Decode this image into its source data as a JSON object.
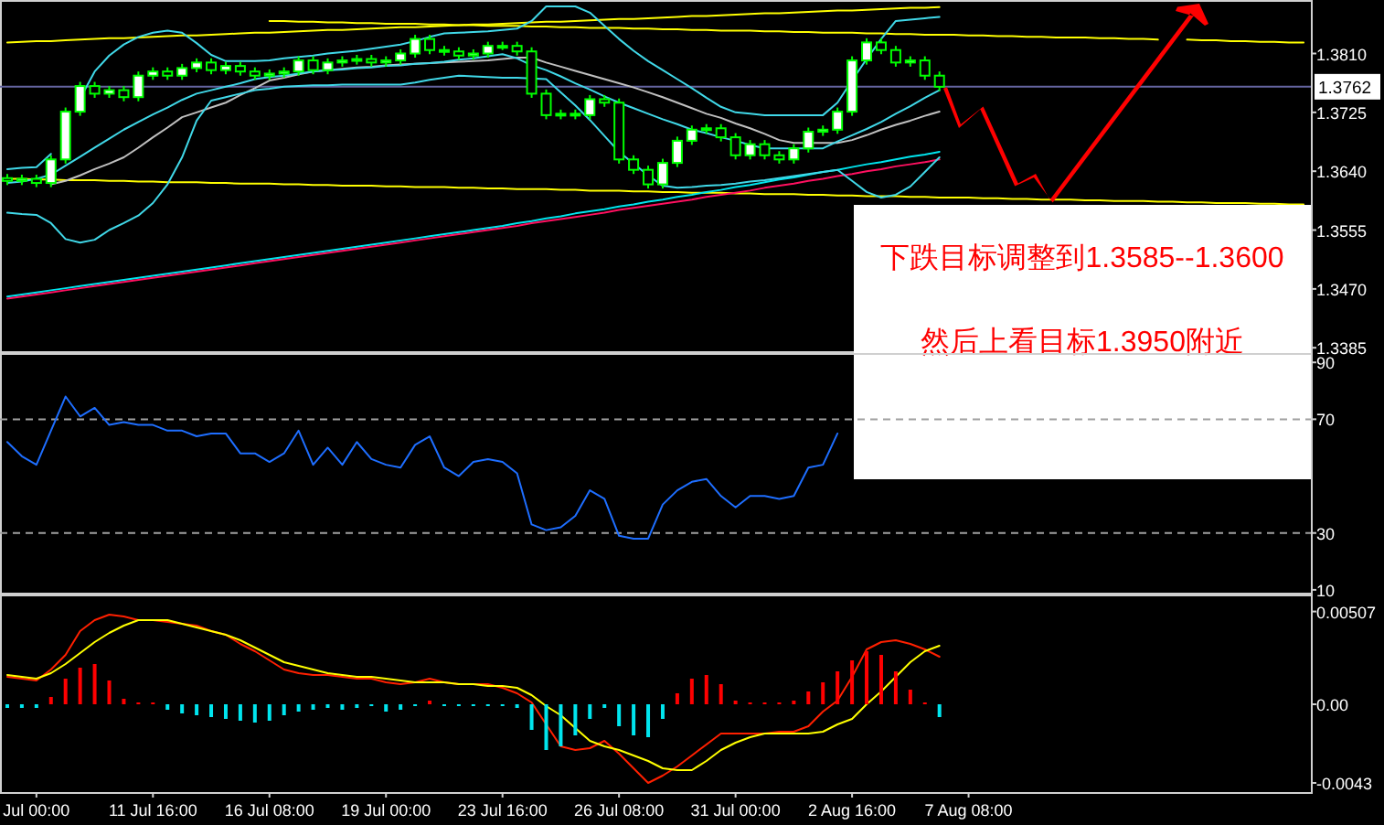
{
  "chart_data": [
    {
      "type": "candlestick",
      "ylim": [
        1.338,
        1.3882
      ],
      "tick_labels": "y",
      "yticks": [
        {
          "value": 1.381,
          "label": "1.3810"
        },
        {
          "value": 1.3725,
          "label": "1.3725"
        },
        {
          "value": 1.364,
          "label": "1.3640"
        },
        {
          "value": 1.3555,
          "label": "1.3555"
        },
        {
          "value": 1.347,
          "label": "1.3470"
        },
        {
          "value": 1.3385,
          "label": "1.3385"
        }
      ],
      "categories": [
        null,
        null,
        null,
        null,
        null,
        null,
        null,
        null,
        null,
        null,
        null,
        null,
        null,
        null,
        null,
        null,
        null,
        null,
        null,
        null,
        null,
        null,
        null,
        null,
        null,
        null,
        null,
        null,
        null,
        null,
        null,
        null,
        null,
        null,
        null,
        null,
        null,
        null,
        null,
        null,
        null,
        null,
        null,
        null,
        null,
        null,
        null,
        null,
        null,
        null,
        null,
        null,
        null,
        null,
        null,
        null,
        null,
        null,
        null,
        null,
        null,
        null,
        null,
        null,
        null,
        null,
        null,
        null,
        null,
        null,
        null,
        null,
        null,
        null,
        null,
        null,
        null,
        null,
        null,
        null,
        null,
        null,
        null,
        null,
        null,
        null,
        null,
        null,
        null,
        null
      ],
      "ohlc": [
        [
          1.363,
          1.3636,
          1.362,
          1.3626
        ],
        [
          1.3626,
          1.3635,
          1.362,
          1.3629
        ],
        [
          1.3629,
          1.3635,
          1.3617,
          1.3623
        ],
        [
          1.3623,
          1.3663,
          1.3617,
          1.3657
        ],
        [
          1.3657,
          1.3732,
          1.3651,
          1.3726
        ],
        [
          1.3726,
          1.3769,
          1.372,
          1.3763
        ],
        [
          1.3763,
          1.3769,
          1.3746,
          1.3752
        ],
        [
          1.3752,
          1.3763,
          1.3746,
          1.3757
        ],
        [
          1.3757,
          1.3763,
          1.3741,
          1.3747
        ],
        [
          1.3747,
          1.3784,
          1.3741,
          1.3778
        ],
        [
          1.3778,
          1.379,
          1.3772,
          1.3784
        ],
        [
          1.3784,
          1.379,
          1.3772,
          1.3778
        ],
        [
          1.3778,
          1.3795,
          1.3772,
          1.3789
        ],
        [
          1.3789,
          1.3803,
          1.3783,
          1.3797
        ],
        [
          1.3797,
          1.3803,
          1.378,
          1.3786
        ],
        [
          1.3786,
          1.3798,
          1.378,
          1.3792
        ],
        [
          1.3792,
          1.3798,
          1.3778,
          1.3784
        ],
        [
          1.3784,
          1.379,
          1.3772,
          1.3778
        ],
        [
          1.3778,
          1.3787,
          1.3772,
          1.3781
        ],
        [
          1.3781,
          1.379,
          1.3775,
          1.3784
        ],
        [
          1.3784,
          1.3806,
          1.3778,
          1.38
        ],
        [
          1.38,
          1.3806,
          1.378,
          1.3786
        ],
        [
          1.3786,
          1.3803,
          1.378,
          1.3797
        ],
        [
          1.3797,
          1.3806,
          1.3791,
          1.38
        ],
        [
          1.38,
          1.3808,
          1.3794,
          1.3802
        ],
        [
          1.3802,
          1.3808,
          1.3791,
          1.3797
        ],
        [
          1.3797,
          1.3806,
          1.3791,
          1.38
        ],
        [
          1.38,
          1.3816,
          1.3794,
          1.381
        ],
        [
          1.381,
          1.3837,
          1.3804,
          1.3831
        ],
        [
          1.3831,
          1.3837,
          1.3809,
          1.3815
        ],
        [
          1.3815,
          1.3821,
          1.3807,
          1.3813
        ],
        [
          1.3813,
          1.3819,
          1.3801,
          1.3807
        ],
        [
          1.3807,
          1.3816,
          1.3801,
          1.381
        ],
        [
          1.381,
          1.3827,
          1.3804,
          1.3821
        ],
        [
          1.3821,
          1.3827,
          1.3815,
          1.3821
        ],
        [
          1.3821,
          1.3827,
          1.3807,
          1.3813
        ],
        [
          1.3813,
          1.3819,
          1.3746,
          1.3752
        ],
        [
          1.3752,
          1.3758,
          1.3715,
          1.3721
        ],
        [
          1.3721,
          1.3729,
          1.3715,
          1.3723
        ],
        [
          1.3723,
          1.3729,
          1.3715,
          1.3721
        ],
        [
          1.3721,
          1.375,
          1.3715,
          1.3744
        ],
        [
          1.3744,
          1.375,
          1.3733,
          1.3739
        ],
        [
          1.3739,
          1.3745,
          1.3651,
          1.3657
        ],
        [
          1.3657,
          1.3663,
          1.3636,
          1.3642
        ],
        [
          1.3642,
          1.3648,
          1.3615,
          1.3621
        ],
        [
          1.3621,
          1.3658,
          1.3615,
          1.3652
        ],
        [
          1.3652,
          1.369,
          1.3646,
          1.3684
        ],
        [
          1.3684,
          1.3706,
          1.3678,
          1.37
        ],
        [
          1.37,
          1.3708,
          1.3694,
          1.3702
        ],
        [
          1.3702,
          1.3708,
          1.3683,
          1.3689
        ],
        [
          1.3689,
          1.3695,
          1.3657,
          1.3663
        ],
        [
          1.3663,
          1.3685,
          1.3657,
          1.3679
        ],
        [
          1.3679,
          1.3685,
          1.3657,
          1.3663
        ],
        [
          1.3663,
          1.3669,
          1.3651,
          1.3657
        ],
        [
          1.3657,
          1.3679,
          1.3651,
          1.3673
        ],
        [
          1.3673,
          1.3703,
          1.3667,
          1.3697
        ],
        [
          1.3697,
          1.3706,
          1.3691,
          1.37
        ],
        [
          1.37,
          1.3732,
          1.3694,
          1.3726
        ],
        [
          1.3726,
          1.3806,
          1.372,
          1.38
        ],
        [
          1.38,
          1.3832,
          1.3794,
          1.3826
        ],
        [
          1.3826,
          1.3832,
          1.3809,
          1.3815
        ],
        [
          1.3815,
          1.3821,
          1.3791,
          1.3797
        ],
        [
          1.3797,
          1.3806,
          1.3791,
          1.38
        ],
        [
          1.38,
          1.3806,
          1.3772,
          1.3778
        ],
        [
          1.3778,
          1.3784,
          1.3756,
          1.3762
        ],
        null,
        null,
        null,
        null,
        null,
        null,
        null,
        null,
        null,
        null,
        null,
        null,
        null,
        null,
        null,
        null,
        null,
        null,
        null,
        null,
        null,
        null,
        null,
        null,
        null
      ],
      "series": [
        {
          "type": "line",
          "color": "#ffff00",
          "values": [
            1.3826,
            1.3827,
            1.3828,
            1.3828,
            1.3829,
            1.383,
            1.3831,
            1.3832,
            1.3832,
            1.3833,
            1.3834,
            1.3835,
            1.3836,
            1.3836,
            1.3837,
            1.3838,
            1.3839,
            1.384,
            1.384,
            1.3841,
            1.3842,
            1.3843,
            1.3844,
            1.3844,
            1.3845,
            1.3846,
            1.3847,
            1.3848,
            1.3848,
            1.3849,
            1.385,
            1.3851,
            1.3852,
            1.3852,
            1.3853,
            1.3854,
            1.3855,
            1.3856,
            1.3856,
            1.3857,
            1.3858,
            1.3859,
            1.386,
            1.386,
            1.3861,
            1.3862,
            1.3863,
            1.3864,
            1.3864,
            1.3865,
            1.3866,
            1.3867,
            1.3868,
            1.3868,
            1.3869,
            1.387,
            1.3871,
            1.3872,
            1.3872,
            1.3873,
            1.3874,
            1.3875,
            1.3876,
            1.3876,
            1.3877,
            null,
            null,
            null,
            null,
            null,
            null,
            null,
            null,
            null,
            null,
            null,
            null,
            null,
            null,
            null,
            null,
            null,
            null,
            null,
            null,
            null,
            null,
            null,
            null,
            null
          ]
        },
        {
          "type": "line",
          "color": "#ffff00",
          "values": [
            null,
            null,
            null,
            null,
            null,
            null,
            null,
            null,
            null,
            null,
            null,
            null,
            null,
            null,
            null,
            null,
            null,
            null,
            1.3857,
            1.3857,
            1.3856,
            1.3856,
            1.3855,
            1.3855,
            1.3854,
            1.3854,
            1.3853,
            1.3853,
            1.3853,
            1.3852,
            1.3852,
            1.3851,
            1.3851,
            1.385,
            1.385,
            1.385,
            1.3849,
            1.3849,
            1.3848,
            1.3848,
            1.3847,
            1.3847,
            1.3847,
            1.3846,
            1.3846,
            1.3845,
            1.3845,
            1.3844,
            1.3844,
            1.3843,
            1.3843,
            1.3843,
            1.3842,
            1.3842,
            1.3841,
            1.3841,
            1.384,
            1.384,
            1.384,
            1.3839,
            1.3839,
            1.3838,
            1.3838,
            1.3837,
            1.3837,
            1.3837,
            1.3836,
            1.3836,
            1.3835,
            1.3835,
            1.3834,
            1.3834,
            1.3833,
            1.3833,
            1.3833,
            1.3832,
            1.3832,
            1.3831,
            1.3831,
            1.383,
            null,
            1.383,
            1.3829,
            1.3829,
            1.3828,
            1.3828,
            1.3827,
            1.3827,
            1.3826,
            1.3826
          ]
        },
        {
          "type": "line",
          "color": "#ffff00",
          "values": [
            1.3629,
            1.3629,
            1.3628,
            1.3628,
            1.3627,
            1.3627,
            1.3627,
            1.3626,
            1.3626,
            1.3625,
            1.3625,
            1.3624,
            1.3624,
            1.3624,
            1.3623,
            1.3623,
            1.3622,
            1.3622,
            1.3622,
            1.3621,
            1.3621,
            1.362,
            1.362,
            1.3619,
            1.3619,
            1.3619,
            1.3618,
            1.3618,
            1.3617,
            1.3617,
            1.3617,
            1.3616,
            1.3616,
            1.3615,
            1.3615,
            1.3614,
            1.3614,
            1.3614,
            1.3613,
            1.3613,
            1.3612,
            1.3612,
            1.3612,
            1.3611,
            1.3611,
            1.361,
            1.361,
            1.3609,
            1.3609,
            1.3609,
            1.3608,
            1.3608,
            1.3607,
            1.3607,
            1.3607,
            1.3606,
            1.3606,
            1.3605,
            1.3605,
            1.3604,
            1.3604,
            1.3604,
            1.3603,
            1.3603,
            1.3602,
            1.3602,
            1.3602,
            1.3601,
            1.3601,
            1.36,
            1.36,
            1.3599,
            1.3599,
            1.3599,
            1.3598,
            1.3598,
            1.3597,
            1.3597,
            1.3597,
            1.3596,
            1.3596,
            1.3595,
            1.3595,
            1.3594,
            1.3594,
            1.3594,
            1.3593,
            1.3593,
            1.3592,
            1.3592
          ]
        },
        {
          "type": "line",
          "color": "#00e5ee",
          "values": [
            1.3459,
            1.3462,
            1.3465,
            1.3468,
            1.3471,
            1.3474,
            1.3477,
            1.348,
            1.3483,
            1.3486,
            1.3489,
            1.3492,
            1.3495,
            1.3498,
            1.3501,
            1.3504,
            1.3507,
            1.351,
            1.3513,
            1.3516,
            1.3519,
            1.3522,
            1.3525,
            1.3528,
            1.3531,
            1.3534,
            1.3537,
            1.354,
            1.3543,
            1.3546,
            1.3549,
            1.3552,
            1.3555,
            1.3558,
            1.3561,
            1.3565,
            1.3568,
            1.3572,
            1.3575,
            1.3579,
            1.3582,
            1.3585,
            1.3589,
            1.3592,
            1.3596,
            1.3599,
            1.3603,
            1.3606,
            1.361,
            1.3613,
            1.3617,
            1.362,
            1.3624,
            1.3628,
            1.3631,
            1.3635,
            1.3639,
            1.3642,
            1.3646,
            1.365,
            1.3653,
            1.3657,
            1.3661,
            1.3664,
            1.3668,
            null,
            null,
            null,
            null,
            null,
            null,
            null,
            null,
            null,
            null,
            null,
            null,
            null,
            null,
            null,
            null,
            null,
            null,
            null,
            null,
            null,
            null,
            null,
            null,
            null
          ]
        },
        {
          "type": "line",
          "color": "#ff1060",
          "values": [
            1.3456,
            1.3459,
            1.3462,
            1.3465,
            1.3468,
            1.3471,
            1.3474,
            1.3477,
            1.348,
            1.3483,
            1.3486,
            1.3489,
            1.3492,
            1.3495,
            1.3498,
            1.3501,
            1.3504,
            1.3507,
            1.351,
            1.3513,
            1.3516,
            1.3519,
            1.3522,
            1.3525,
            1.3528,
            1.3531,
            1.3534,
            1.3537,
            1.354,
            1.3543,
            1.3546,
            1.3549,
            1.3552,
            1.3555,
            1.3558,
            1.3561,
            1.3565,
            1.3568,
            1.3571,
            1.3574,
            1.3577,
            1.358,
            1.3584,
            1.3587,
            1.359,
            1.3593,
            1.3596,
            1.3599,
            1.3603,
            1.3606,
            1.3609,
            1.3612,
            1.3616,
            1.3619,
            1.3622,
            1.3626,
            1.3629,
            1.3633,
            1.3636,
            1.364,
            1.3643,
            1.3647,
            1.365,
            1.3653,
            1.3657,
            null,
            null,
            null,
            null,
            null,
            null,
            null,
            null,
            null,
            null,
            null,
            null,
            null,
            null,
            null,
            null,
            null,
            null,
            null,
            null,
            null,
            null,
            null,
            null,
            null
          ]
        },
        {
          "type": "line",
          "color": "#c0c0c0",
          "values": [
            null,
            null,
            null,
            1.3621,
            1.3626,
            1.3634,
            1.3643,
            1.3651,
            1.366,
            1.3674,
            1.3689,
            1.3703,
            1.3718,
            1.3725,
            1.3732,
            1.3739,
            1.375,
            1.376,
            1.3771,
            1.3775,
            1.378,
            1.3784,
            1.3786,
            1.3788,
            1.379,
            1.3791,
            1.3793,
            1.3794,
            1.3795,
            1.3796,
            1.3797,
            1.3798,
            1.3799,
            1.38,
            1.3802,
            1.3804,
            1.3804,
            1.3797,
            1.3791,
            1.3785,
            1.3779,
            1.3773,
            1.3767,
            1.3761,
            1.3754,
            1.3747,
            1.3739,
            1.3731,
            1.3723,
            1.3717,
            1.3709,
            1.3702,
            1.3694,
            1.3685,
            1.3681,
            1.3681,
            1.3681,
            1.3681,
            1.3685,
            1.3692,
            1.37,
            1.3707,
            1.3713,
            1.372,
            1.3726,
            null,
            null,
            null,
            null,
            null,
            null,
            null,
            null,
            null,
            null,
            null,
            null,
            null,
            null,
            null,
            null,
            null,
            null,
            null,
            null,
            null,
            null,
            null,
            null,
            null
          ]
        },
        {
          "type": "line",
          "color": "#40d8e8",
          "values": [
            1.3623,
            1.3625,
            1.3629,
            1.3635,
            1.3648,
            1.3661,
            1.3674,
            1.3687,
            1.37,
            1.3711,
            1.3722,
            1.3732,
            1.3743,
            1.3752,
            1.3757,
            1.3762,
            1.3767,
            1.3773,
            1.3776,
            1.3778,
            1.3781,
            1.3784,
            1.3786,
            1.3787,
            1.3789,
            1.379,
            1.3792,
            1.3793,
            1.3795,
            1.3796,
            1.3798,
            1.3801,
            1.3803,
            1.3806,
            1.3809,
            1.3803,
            1.3793,
            1.3786,
            1.3777,
            1.3767,
            1.3758,
            1.3748,
            1.3739,
            1.3731,
            1.3723,
            1.3715,
            1.3708,
            1.37,
            1.3695,
            1.3689,
            1.3684,
            1.3678,
            1.3673,
            1.3673,
            1.3673,
            1.3673,
            1.3673,
            1.3683,
            1.3692,
            1.3701,
            1.3711,
            1.3723,
            1.3734,
            1.3746,
            1.3757,
            null,
            null,
            null,
            null,
            null,
            null,
            null,
            null,
            null,
            null,
            null,
            null,
            null,
            null,
            null,
            null,
            null,
            null,
            null,
            null,
            null,
            null,
            null,
            null,
            null
          ]
        },
        {
          "type": "line",
          "color": "#40d8e8",
          "values": [
            1.3643,
            1.3645,
            1.3646,
            1.3665,
            null,
            1.3745,
            1.3784,
            1.3807,
            1.3823,
            1.3834,
            1.384,
            1.3843,
            1.384,
            1.3825,
            1.3808,
            1.3799,
            1.3799,
            1.3799,
            1.38,
            1.3803,
            1.3805,
            1.3807,
            1.381,
            1.3812,
            1.3814,
            1.3817,
            1.382,
            1.3823,
            1.3828,
            1.3834,
            1.3839,
            1.384,
            1.3841,
            1.3842,
            1.3844,
            1.3846,
            1.3857,
            1.3878,
            1.3878,
            1.3878,
            1.3869,
            1.385,
            1.3831,
            1.3814,
            1.3799,
            1.3786,
            1.3773,
            1.376,
            1.3746,
            1.3733,
            1.3725,
            1.3723,
            1.3721,
            1.3721,
            1.3721,
            1.3721,
            1.3721,
            1.3739,
            1.3771,
            1.3802,
            1.3831,
            1.3857,
            1.3859,
            1.3861,
            1.3863,
            null,
            null,
            null,
            null,
            null,
            null,
            null,
            null,
            null,
            null,
            null,
            null,
            null,
            null,
            null,
            null,
            null,
            null,
            null,
            null,
            null,
            null,
            null,
            null,
            null
          ]
        },
        {
          "type": "line",
          "color": "#40d8e8",
          "values": [
            1.358,
            1.3578,
            1.3577,
            1.3565,
            1.3542,
            1.3537,
            1.3541,
            1.3555,
            1.3565,
            1.3576,
            1.3594,
            1.3621,
            1.366,
            1.3713,
            1.3742,
            1.3747,
            1.3752,
            1.3757,
            1.3759,
            1.3762,
            1.3763,
            1.3764,
            1.3764,
            1.3765,
            1.3765,
            1.3765,
            1.3765,
            1.3765,
            1.3768,
            1.3772,
            1.3775,
            1.3778,
            1.3777,
            1.3776,
            1.3775,
            1.3775,
            1.3774,
            1.3773,
            1.3754,
            1.3735,
            1.3714,
            1.3691,
            1.3668,
            1.3651,
            1.3634,
            1.3619,
            1.3616,
            1.3617,
            1.3619,
            1.362,
            1.3622,
            1.3625,
            1.3627,
            1.363,
            1.3633,
            1.3636,
            1.3639,
            1.3642,
            1.3626,
            1.361,
            1.3602,
            1.3606,
            1.3618,
            1.3639,
            1.366,
            null,
            null,
            null,
            null,
            null,
            null,
            null,
            null,
            null,
            null,
            null,
            null,
            null,
            null,
            null,
            null,
            null,
            null,
            null,
            null,
            null,
            null,
            null,
            null,
            null
          ]
        }
      ],
      "ref_lines": [
        {
          "axis": "y",
          "value": 1.3762,
          "label": "1.3762",
          "color": "#6464a0"
        }
      ],
      "annotations": [
        "下跌目标调整到1.3585--1.3600",
        "然后上看目标1.3950附近"
      ]
    },
    {
      "type": "line",
      "ylim": [
        9,
        92
      ],
      "tick_labels": "y",
      "yticks": [
        90,
        70,
        30,
        10
      ],
      "categories": [
        null,
        null,
        null,
        null,
        null,
        null,
        null,
        null,
        null,
        null,
        null,
        null,
        null,
        null,
        null,
        null,
        null,
        null,
        null,
        null,
        null,
        null,
        null,
        null,
        null,
        null,
        null,
        null,
        null,
        null,
        null,
        null,
        null,
        null,
        null,
        null,
        null,
        null,
        null,
        null,
        null,
        null,
        null,
        null,
        null,
        null,
        null,
        null,
        null,
        null,
        null,
        null,
        null,
        null,
        null,
        null,
        null,
        null,
        null,
        null,
        null,
        null,
        null,
        null,
        null,
        null,
        null,
        null,
        null,
        null,
        null,
        null,
        null,
        null,
        null,
        null,
        null,
        null,
        null,
        null,
        null,
        null,
        null,
        null,
        null,
        null,
        null,
        null,
        null,
        null
      ],
      "ref_lines": [
        {
          "axis": "y",
          "value": 70,
          "color": "#a0a0a0",
          "line_style": "dashed"
        },
        {
          "axis": "y",
          "value": 30,
          "color": "#a0a0a0",
          "line_style": "dashed"
        }
      ],
      "series": [
        {
          "color": "#1e6eff",
          "values": [
            62,
            57,
            54,
            66,
            78,
            71,
            74,
            68,
            69,
            68,
            68,
            66,
            66,
            64,
            65,
            65,
            58,
            58,
            55,
            58,
            66,
            54,
            60,
            54,
            62,
            56,
            54,
            53,
            61,
            64,
            53,
            50,
            55,
            56,
            55,
            51,
            33,
            31,
            32,
            36,
            45,
            42,
            29,
            28,
            28,
            40,
            45,
            48,
            49,
            43,
            39,
            43,
            43,
            42,
            43,
            53,
            54,
            65,
            null,
            null,
            null,
            null,
            null,
            null,
            null,
            null,
            null,
            null,
            null,
            null,
            null,
            null,
            null,
            null,
            null,
            null,
            null,
            null,
            null,
            null,
            null,
            null,
            null,
            null,
            null,
            null,
            null,
            null,
            null,
            null
          ]
        }
      ]
    },
    {
      "type": "bar",
      "ylim": [
        -0.0048,
        0.0058
      ],
      "yticks": [
        0.00507,
        {
          "value": 0,
          "label": "0.00"
        },
        -0.0043
      ],
      "categories": [
        null,
        null,
        "Jul 00:00",
        null,
        null,
        null,
        null,
        null,
        null,
        null,
        "11 Jul 16:00",
        null,
        null,
        null,
        null,
        null,
        null,
        null,
        "16 Jul 08:00",
        null,
        null,
        null,
        null,
        null,
        null,
        null,
        "19 Jul 00:00",
        null,
        null,
        null,
        null,
        null,
        null,
        null,
        "23 Jul 16:00",
        null,
        null,
        null,
        null,
        null,
        null,
        null,
        "26 Jul 08:00",
        null,
        null,
        null,
        null,
        null,
        null,
        null,
        "31 Jul 00:00",
        null,
        null,
        null,
        null,
        null,
        null,
        null,
        "2 Aug 16:00",
        null,
        null,
        null,
        null,
        null,
        null,
        null,
        "7 Aug 08:00",
        null,
        null,
        null,
        null,
        null,
        null,
        null,
        null,
        null,
        null,
        null,
        null,
        null,
        null,
        null,
        null,
        null,
        null,
        null,
        null,
        null,
        null,
        null
      ],
      "values": [
        -0.0002,
        -0.0002,
        -0.0002,
        0.0004,
        0.0014,
        0.002,
        0.0022,
        0.0013,
        0.0003,
        0.0001,
        0.0001,
        -0.0003,
        -0.0005,
        -0.0006,
        -0.0007,
        -0.0008,
        -0.0009,
        -0.001,
        -0.0009,
        -0.0006,
        -0.0004,
        -0.0003,
        -0.0002,
        -0.0003,
        -0.0002,
        -0.0001,
        -0.0004,
        -0.0003,
        -0.0001,
        0.0002,
        -0.0001,
        -0.0001,
        -0.0001,
        -0.0001,
        -0.0001,
        -0.0002,
        -0.0014,
        -0.0025,
        -0.0023,
        -0.0017,
        -0.0008,
        -0.0002,
        -0.0012,
        -0.0017,
        -0.0018,
        -0.0008,
        0.0006,
        0.0014,
        0.0016,
        0.0011,
        0.0002,
        0.0001,
        0.0001,
        0.0001,
        0.0002,
        0.0007,
        0.0012,
        0.0018,
        0.0024,
        0.0029,
        0.0027,
        0.0018,
        0.0008,
        0.0001,
        -0.0007,
        null,
        null,
        null,
        null,
        null,
        null,
        null,
        null,
        null,
        null,
        null,
        null,
        null,
        null,
        null,
        null,
        null,
        null,
        null,
        null,
        null,
        null,
        null,
        null,
        null
      ],
      "colors": [
        "#00e5ee",
        "#00e5ee",
        "#00e5ee",
        "#ff0000",
        "#ff0000",
        "#ff0000",
        "#ff0000",
        "#ff0000",
        "#ff0000",
        "#ff0000",
        "#ff0000",
        "#00e5ee",
        "#00e5ee",
        "#00e5ee",
        "#00e5ee",
        "#00e5ee",
        "#00e5ee",
        "#00e5ee",
        "#00e5ee",
        "#00e5ee",
        "#00e5ee",
        "#00e5ee",
        "#00e5ee",
        "#00e5ee",
        "#00e5ee",
        "#00e5ee",
        "#00e5ee",
        "#00e5ee",
        "#00e5ee",
        "#ff0000",
        "#00e5ee",
        "#00e5ee",
        "#00e5ee",
        "#00e5ee",
        "#00e5ee",
        "#00e5ee",
        "#00e5ee",
        "#00e5ee",
        "#00e5ee",
        "#00e5ee",
        "#00e5ee",
        "#00e5ee",
        "#00e5ee",
        "#00e5ee",
        "#00e5ee",
        "#00e5ee",
        "#ff0000",
        "#ff0000",
        "#ff0000",
        "#ff0000",
        "#ff0000",
        "#ff0000",
        "#ff0000",
        "#ff0000",
        "#ff0000",
        "#ff0000",
        "#ff0000",
        "#ff0000",
        "#ff0000",
        "#ff0000",
        "#ff0000",
        "#ff0000",
        "#ff0000",
        "#ff0000",
        "#00e5ee",
        null,
        null,
        null,
        null,
        null,
        null,
        null,
        null,
        null,
        null,
        null,
        null,
        null,
        null,
        null,
        null,
        null,
        null,
        null,
        null,
        null,
        null,
        null,
        null,
        null
      ],
      "series": [
        {
          "type": "line",
          "color": "#ff2000",
          "values": [
            0.0015,
            0.0014,
            0.0013,
            0.0019,
            0.0027,
            0.004,
            0.0046,
            0.0049,
            0.0048,
            0.0046,
            0.0046,
            0.0045,
            0.0044,
            0.0043,
            0.004,
            0.0038,
            0.0033,
            0.0029,
            0.0024,
            0.0019,
            0.0017,
            0.0016,
            0.0016,
            0.0015,
            0.0014,
            0.0014,
            0.0012,
            0.0011,
            0.0012,
            0.0014,
            0.0012,
            0.0011,
            0.0011,
            0.0011,
            0.0009,
            0.0006,
            0.0001,
            -0.0011,
            -0.0023,
            -0.0025,
            -0.0024,
            -0.002,
            -0.0027,
            -0.0035,
            -0.0043,
            -0.0039,
            -0.0034,
            -0.0028,
            -0.0022,
            -0.0016,
            -0.0016,
            -0.0016,
            -0.0016,
            -0.0015,
            -0.0015,
            -0.0012,
            -0.0004,
            0.0002,
            0.0015,
            0.003,
            0.0034,
            0.0035,
            0.0033,
            0.003,
            0.0026,
            null,
            null,
            null,
            null,
            null,
            null,
            null,
            null,
            null,
            null,
            null,
            null,
            null,
            null,
            null,
            null,
            null,
            null,
            null,
            null,
            null,
            null,
            null,
            null,
            null
          ]
        },
        {
          "type": "line",
          "color": "#ffff00",
          "values": [
            0.0016,
            0.0015,
            0.0014,
            0.0017,
            0.0022,
            0.0028,
            0.0034,
            0.0039,
            0.0043,
            0.0046,
            0.0046,
            0.0046,
            0.0044,
            0.0042,
            0.004,
            0.0038,
            0.0035,
            0.0031,
            0.0027,
            0.0023,
            0.0021,
            0.0019,
            0.0017,
            0.0016,
            0.0015,
            0.0015,
            0.0014,
            0.0013,
            0.0012,
            0.0012,
            0.0012,
            0.0011,
            0.0011,
            0.001,
            0.001,
            0.0009,
            0.0005,
            -0.0001,
            -0.0006,
            -0.0013,
            -0.002,
            -0.0023,
            -0.0025,
            -0.0028,
            -0.0031,
            -0.0035,
            -0.0036,
            -0.0036,
            -0.0031,
            -0.0025,
            -0.0021,
            -0.0018,
            -0.0016,
            -0.0016,
            -0.0016,
            -0.0016,
            -0.0015,
            -0.0011,
            -0.0008,
            0.0,
            0.0007,
            0.0015,
            0.0023,
            0.0029,
            0.0032,
            null,
            null,
            null,
            null,
            null,
            null,
            null,
            null,
            null,
            null,
            null,
            null,
            null,
            null,
            null,
            null,
            null,
            null,
            null,
            null,
            null,
            null,
            null,
            null,
            null
          ]
        }
      ]
    }
  ]
}
